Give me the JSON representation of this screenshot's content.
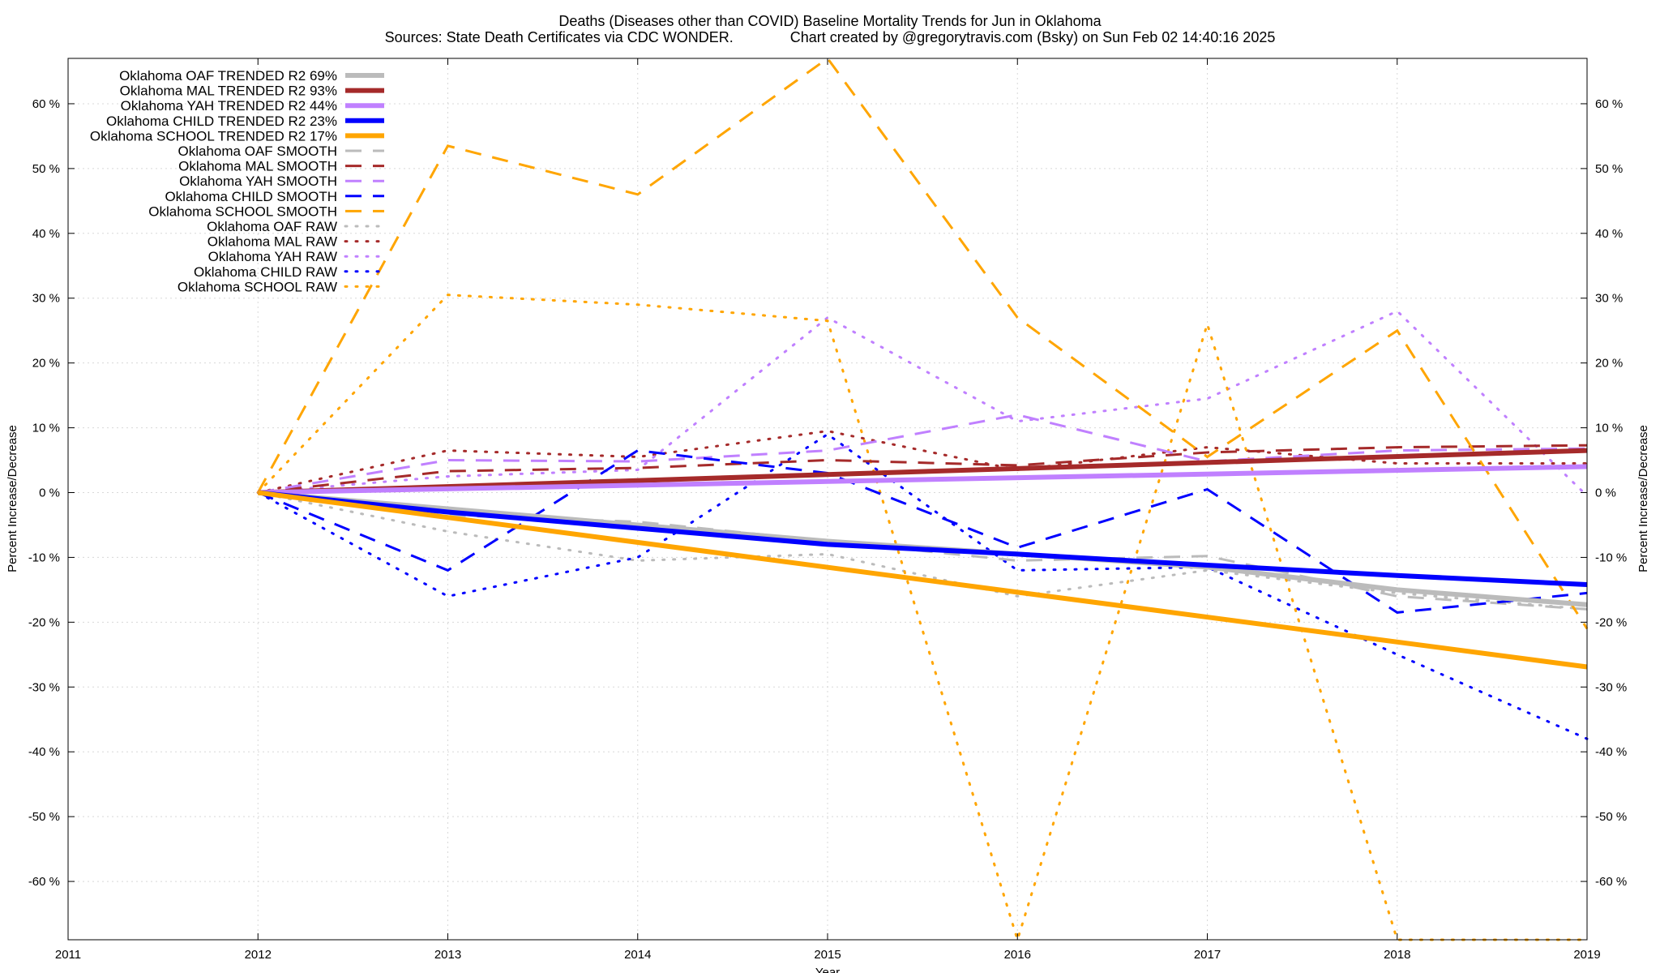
{
  "chart_data": {
    "type": "line",
    "title": "Deaths (Diseases other than COVID)  Baseline Mortality Trends for Jun in Oklahoma",
    "subtitle": "Sources: State Death Certificates via CDC WONDER.              Chart created by @gregorytravis.com (Bsky) on Sun Feb 02 14:40:16 2025",
    "xlabel": "Year",
    "ylabel_left": "Percent Increase/Decrease",
    "ylabel_right": "Percent Increase/Decrease",
    "xlim": [
      2011,
      2019
    ],
    "ylim": [
      -69,
      67
    ],
    "x_ticks": [
      2011,
      2012,
      2013,
      2014,
      2015,
      2016,
      2017,
      2018,
      2019
    ],
    "y_ticks": [
      60,
      50,
      40,
      30,
      20,
      10,
      0,
      -10,
      -20,
      -30,
      -40,
      -50,
      -60
    ],
    "y_tick_suffix": " %",
    "grid": true,
    "legend_position": "top-left",
    "series": [
      {
        "name": "Oklahoma OAF TRENDED R2  69%",
        "style": "solid",
        "color": "#bbbbbb",
        "x": [
          2012,
          2013,
          2014,
          2015,
          2016,
          2017,
          2018,
          2019
        ],
        "values": [
          0,
          -2.5,
          -5,
          -7.5,
          -9.5,
          -11.5,
          -15,
          -17.3
        ]
      },
      {
        "name": "Oklahoma MAL TRENDED R2  93%",
        "style": "solid",
        "color": "#a52a2a",
        "x": [
          2012,
          2019
        ],
        "values": [
          0,
          6.5
        ]
      },
      {
        "name": "Oklahoma YAH TRENDED R2  44%",
        "style": "solid",
        "color": "#c080ff",
        "x": [
          2012,
          2019
        ],
        "values": [
          0,
          4
        ]
      },
      {
        "name": "Oklahoma CHILD TRENDED R2  23%",
        "style": "solid",
        "color": "#0000ff",
        "x": [
          2012,
          2013,
          2014,
          2015,
          2016,
          2017,
          2018,
          2019
        ],
        "values": [
          0,
          -3,
          -5.5,
          -8,
          -9.5,
          -11.2,
          -12.8,
          -14.2
        ]
      },
      {
        "name": "Oklahoma SCHOOL TRENDED R2  17%",
        "style": "solid",
        "color": "#ffa500",
        "x": [
          2012,
          2019
        ],
        "values": [
          0,
          -26.9
        ]
      },
      {
        "name": "Oklahoma OAF SMOOTH",
        "style": "dashed",
        "color": "#bbbbbb",
        "x": [
          2012,
          2013,
          2014,
          2015,
          2016,
          2017,
          2018,
          2019
        ],
        "values": [
          0,
          -3.5,
          -4.5,
          -7.5,
          -10.5,
          -9.8,
          -16,
          -18
        ]
      },
      {
        "name": "Oklahoma MAL SMOOTH",
        "style": "dashed",
        "color": "#a52a2a",
        "x": [
          2012,
          2013,
          2014,
          2015,
          2016,
          2017,
          2018,
          2019
        ],
        "values": [
          0,
          3.3,
          3.8,
          5,
          4.2,
          6.2,
          7,
          7.3
        ]
      },
      {
        "name": "Oklahoma YAH SMOOTH",
        "style": "dashed",
        "color": "#c080ff",
        "x": [
          2012,
          2013,
          2014,
          2015,
          2016,
          2017,
          2018,
          2019
        ],
        "values": [
          0,
          5,
          4.8,
          6.5,
          12,
          4.8,
          6.5,
          6.8
        ]
      },
      {
        "name": "Oklahoma CHILD SMOOTH",
        "style": "dashed",
        "color": "#0000ff",
        "x": [
          2012,
          2013,
          2014,
          2015,
          2016,
          2017,
          2018,
          2019
        ],
        "values": [
          0,
          -12,
          6.5,
          3,
          -8.5,
          0.5,
          -18.5,
          -15.5
        ]
      },
      {
        "name": "Oklahoma SCHOOL SMOOTH",
        "style": "dashed",
        "color": "#ffa500",
        "x": [
          2012,
          2013,
          2014,
          2015,
          2016,
          2017,
          2018,
          2019
        ],
        "values": [
          0,
          53.5,
          46,
          67,
          27,
          5.5,
          25,
          -21
        ]
      },
      {
        "name": "Oklahoma OAF RAW",
        "style": "dotted",
        "color": "#bbbbbb",
        "x": [
          2012,
          2013,
          2014,
          2015,
          2016,
          2017,
          2018,
          2019
        ],
        "values": [
          0,
          -6,
          -10.5,
          -9.5,
          -16,
          -12,
          -15.5,
          -18
        ]
      },
      {
        "name": "Oklahoma MAL RAW",
        "style": "dotted",
        "color": "#a52a2a",
        "x": [
          2012,
          2013,
          2014,
          2015,
          2016,
          2017,
          2018,
          2019
        ],
        "values": [
          0,
          6.5,
          5.5,
          9.5,
          3.5,
          7,
          4.5,
          4.5
        ]
      },
      {
        "name": "Oklahoma YAH RAW",
        "style": "dotted",
        "color": "#c080ff",
        "x": [
          2012,
          2013,
          2014,
          2015,
          2016,
          2017,
          2018,
          2019
        ],
        "values": [
          0,
          2.5,
          3.5,
          27,
          11,
          14.5,
          28,
          -0.5
        ]
      },
      {
        "name": "Oklahoma CHILD RAW",
        "style": "dotted",
        "color": "#0000ff",
        "x": [
          2012,
          2013,
          2014,
          2015,
          2016,
          2017,
          2018,
          2019
        ],
        "values": [
          0,
          -16,
          -10,
          9,
          -12,
          -11.5,
          -25,
          -38
        ]
      },
      {
        "name": "Oklahoma SCHOOL RAW",
        "style": "dotted",
        "color": "#ffa500",
        "x": [
          2012,
          2013,
          2014,
          2015,
          2016,
          2017,
          2018,
          2019
        ],
        "values": [
          0,
          30.5,
          29,
          26.5,
          -69,
          26,
          -69,
          -69
        ]
      }
    ]
  }
}
